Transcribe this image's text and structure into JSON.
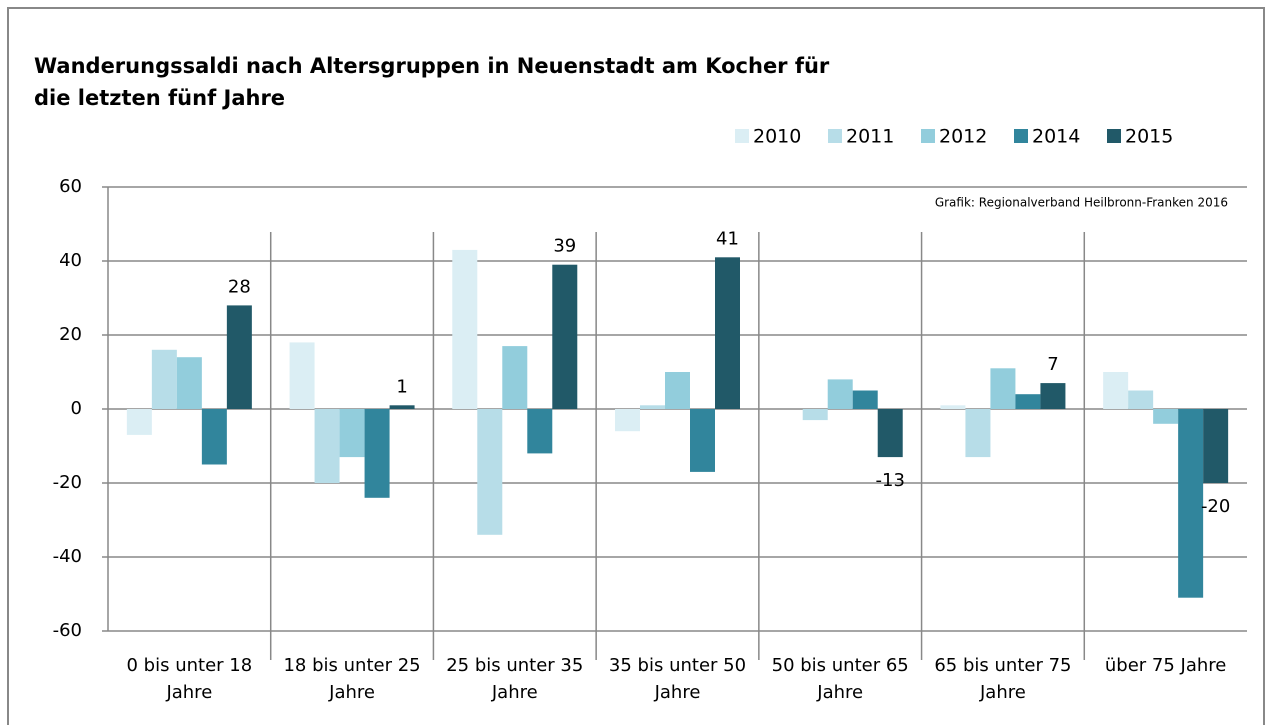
{
  "chart_data": {
    "type": "bar",
    "title": "Wanderungssaldi nach Altersgruppen in Neuenstadt am Kocher für\ndie letzten fünf Jahre",
    "annotation": "Grafik: Regionalverband Heilbronn-Franken 2016",
    "categories": [
      "0 bis unter 18\nJahre",
      "18 bis unter 25\nJahre",
      "25 bis unter 35\nJahre",
      "35 bis unter 50\nJahre",
      "50 bis unter 65\nJahre",
      "65 bis unter 75\nJahre",
      "über 75 Jahre"
    ],
    "series": [
      {
        "name": "2010",
        "color": "#dbeef4",
        "values": [
          -7,
          18,
          43,
          -6,
          0,
          1,
          10
        ]
      },
      {
        "name": "2011",
        "color": "#b7dde8",
        "values": [
          16,
          -20,
          -34,
          1,
          -3,
          -13,
          5
        ]
      },
      {
        "name": "2012",
        "color": "#92cddc",
        "values": [
          14,
          -13,
          17,
          10,
          8,
          11,
          -4
        ]
      },
      {
        "name": "2014",
        "color": "#31859c",
        "values": [
          -15,
          -24,
          -12,
          -17,
          5,
          4,
          -51
        ]
      },
      {
        "name": "2015",
        "color": "#215968",
        "values": [
          28,
          1,
          39,
          41,
          -13,
          7,
          -20
        ],
        "data_labels": true
      }
    ],
    "ylim": [
      -60,
      60
    ],
    "yticks": [
      -60,
      -40,
      -20,
      0,
      20,
      40,
      60
    ],
    "grid": true,
    "legend": "top-right"
  }
}
